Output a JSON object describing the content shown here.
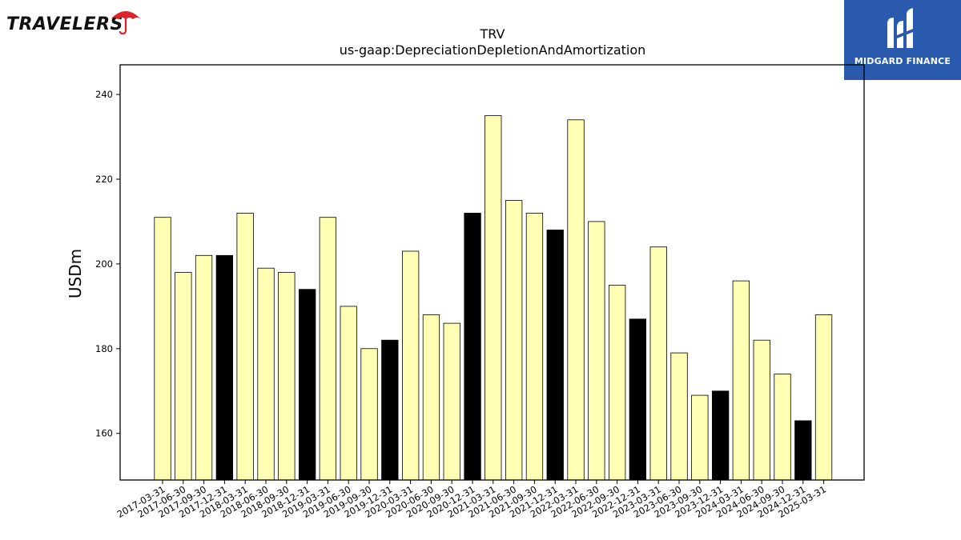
{
  "brand": {
    "left_logo_text": "TRAVELERS",
    "right_logo_text": "MIDGARD FINANCE",
    "umbrella_color": "#e0232a",
    "midgard_bg": "#2a5aad"
  },
  "chart_data": {
    "type": "bar",
    "title": "TRV",
    "subtitle": "us-gaap:DepreciationDepletionAndAmortization",
    "xlabel": "",
    "ylabel": "USDm",
    "ylim": [
      149,
      247
    ],
    "yticks": [
      160,
      180,
      200,
      220,
      240
    ],
    "grid": false,
    "bar_colors": {
      "quarter": "#ffffb3",
      "year_end": "#000000"
    },
    "categories": [
      "2017-03-31",
      "2017-06-30",
      "2017-09-30",
      "2017-12-31",
      "2018-03-31",
      "2018-06-30",
      "2018-09-30",
      "2018-12-31",
      "2019-03-31",
      "2019-06-30",
      "2019-09-30",
      "2019-12-31",
      "2020-03-31",
      "2020-06-30",
      "2020-09-30",
      "2020-12-31",
      "2021-03-31",
      "2021-06-30",
      "2021-09-30",
      "2021-12-31",
      "2022-03-31",
      "2022-06-30",
      "2022-09-30",
      "2022-12-31",
      "2023-03-31",
      "2023-06-30",
      "2023-09-30",
      "2023-12-31",
      "2024-03-31",
      "2024-06-30",
      "2024-09-30",
      "2024-12-31",
      "2025-03-31"
    ],
    "values": [
      211,
      198,
      202,
      202,
      212,
      199,
      198,
      194,
      211,
      190,
      180,
      182,
      203,
      188,
      186,
      212,
      235,
      215,
      212,
      208,
      234,
      210,
      195,
      187,
      204,
      179,
      169,
      170,
      196,
      182,
      174,
      163,
      188
    ]
  }
}
